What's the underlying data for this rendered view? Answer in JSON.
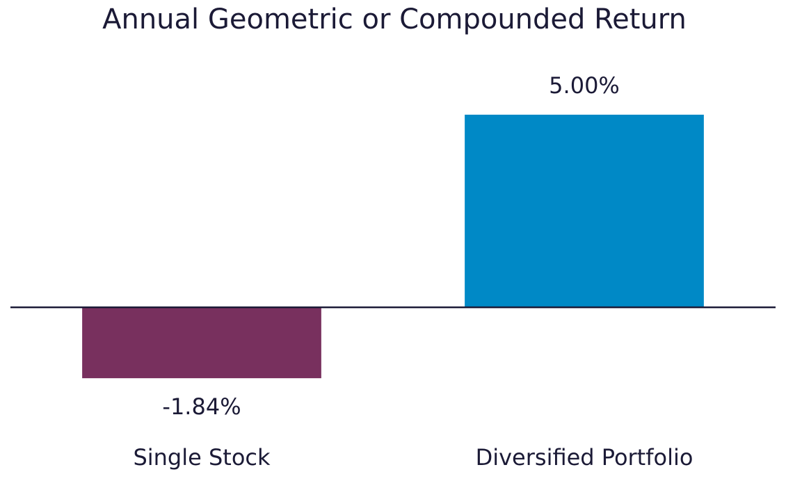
{
  "chart_data": {
    "type": "bar",
    "title": "Annual Geometric or Compounded Return",
    "categories": [
      "Single Stock",
      "Diversified Portfolio"
    ],
    "values": [
      -1.84,
      5.0
    ],
    "value_labels": [
      "-1.84%",
      "5.00%"
    ],
    "colors": [
      "#78305e",
      "#0089c6"
    ],
    "ylim": [
      -2,
      5
    ]
  }
}
